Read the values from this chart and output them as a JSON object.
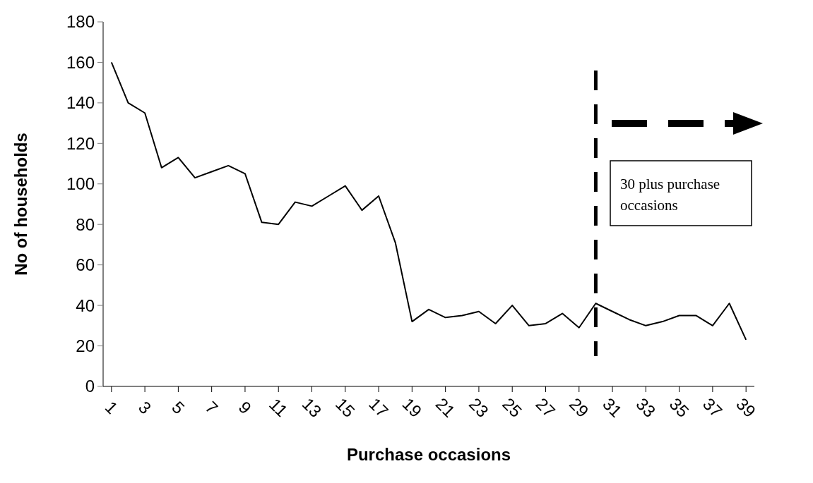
{
  "chart_data": {
    "type": "line",
    "xlabel": "Purchase occasions",
    "ylabel": "No of households",
    "x": [
      1,
      2,
      3,
      4,
      5,
      6,
      7,
      8,
      9,
      10,
      11,
      12,
      13,
      14,
      15,
      16,
      17,
      18,
      19,
      20,
      21,
      22,
      23,
      24,
      25,
      26,
      27,
      28,
      29,
      30,
      31,
      32,
      33,
      34,
      35,
      36,
      37,
      38,
      39
    ],
    "series": [
      {
        "color": "#000000",
        "values": [
          160,
          140,
          135,
          108,
          113,
          103,
          106,
          109,
          105,
          81,
          80,
          91,
          89,
          94,
          99,
          87,
          94,
          71,
          32,
          38,
          34,
          35,
          37,
          31,
          40,
          30,
          31,
          36,
          29,
          41,
          37,
          33,
          30,
          32,
          35,
          35,
          30,
          41,
          23
        ]
      }
    ],
    "xlim": [
      0.5,
      39.5
    ],
    "xticks": [
      1,
      3,
      5,
      7,
      9,
      11,
      13,
      15,
      17,
      19,
      21,
      23,
      25,
      27,
      29,
      31,
      33,
      35,
      37,
      39
    ],
    "ylim": [
      0,
      180
    ],
    "yticks": [
      0,
      20,
      40,
      60,
      80,
      100,
      120,
      140,
      160,
      180
    ],
    "ref_lines": [
      {
        "axis": "x",
        "value": 30,
        "color": "#000000",
        "line_style": "dashed"
      }
    ],
    "annotations": [
      "30 plus purchase occasions"
    ],
    "grid": false,
    "marker": "none",
    "line_style": "solid"
  }
}
